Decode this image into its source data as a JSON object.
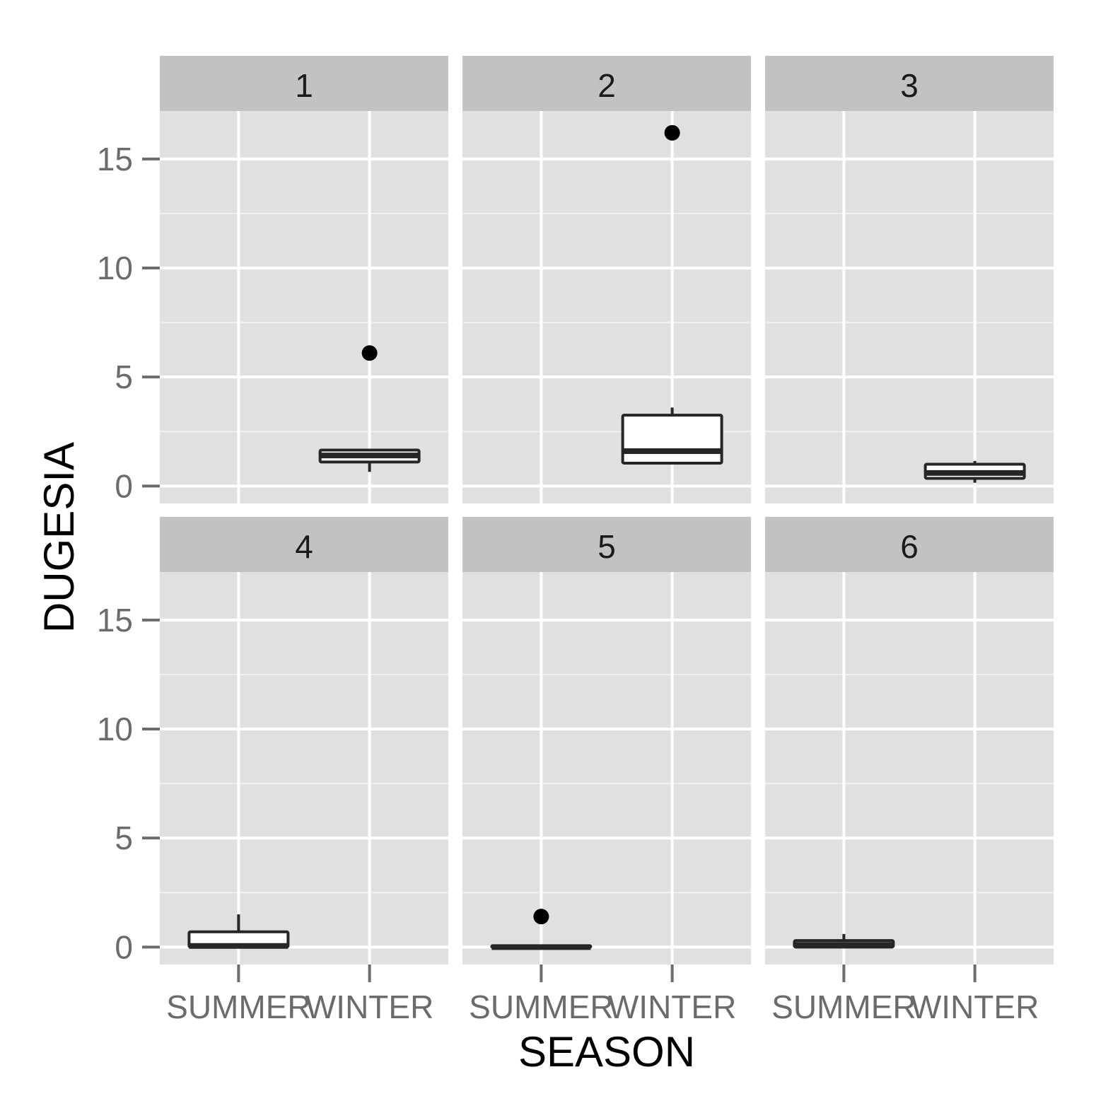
{
  "chart_data": {
    "type": "boxplot",
    "facet_layout": "2 rows x 3 columns",
    "xlabel": "SEASON",
    "ylabel": "DUGESIA",
    "categories": [
      "SUMMER",
      "WINTER"
    ],
    "y_ticks": [
      0,
      5,
      10,
      15
    ],
    "ylim": [
      -0.8,
      17.2
    ],
    "grid": true,
    "colors": {
      "panel_background": "#e0e0e0",
      "strip_background": "#c2c2c2",
      "grid_major": "#ffffff",
      "grid_minor": "#f0f0f0",
      "box_fill": "#ffffff",
      "box_line": "#262626",
      "outlier": "#000000"
    },
    "panels": [
      {
        "label": "1",
        "boxes": [
          {
            "category": "WINTER",
            "lower": 0.65,
            "q1": 1.1,
            "median": 1.4,
            "q3": 1.65,
            "upper": 1.65,
            "outliers": [
              6.1
            ]
          }
        ]
      },
      {
        "label": "2",
        "boxes": [
          {
            "category": "WINTER",
            "lower": 1.05,
            "q1": 1.05,
            "median": 1.6,
            "q3": 3.25,
            "upper": 3.6,
            "outliers": [
              16.2
            ]
          }
        ]
      },
      {
        "label": "3",
        "boxes": [
          {
            "category": "WINTER",
            "lower": 0.15,
            "q1": 0.35,
            "median": 0.6,
            "q3": 1.0,
            "upper": 1.15,
            "outliers": []
          }
        ]
      },
      {
        "label": "4",
        "boxes": [
          {
            "category": "SUMMER",
            "lower": 0.0,
            "q1": 0.0,
            "median": 0.05,
            "q3": 0.7,
            "upper": 1.5,
            "outliers": []
          }
        ]
      },
      {
        "label": "5",
        "boxes": [
          {
            "category": "SUMMER",
            "lower": 0.0,
            "q1": 0.0,
            "median": 0.0,
            "q3": 0.05,
            "upper": 0.05,
            "outliers": [
              1.4
            ]
          }
        ]
      },
      {
        "label": "6",
        "boxes": [
          {
            "category": "SUMMER",
            "lower": 0.0,
            "q1": 0.0,
            "median": 0.1,
            "q3": 0.3,
            "upper": 0.6,
            "outliers": []
          }
        ]
      }
    ]
  }
}
